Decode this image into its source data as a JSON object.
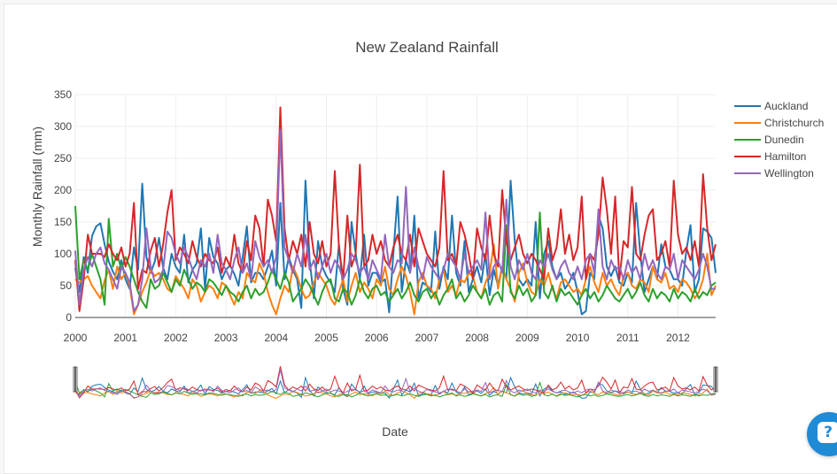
{
  "chart_data": {
    "type": "line",
    "title": "New Zealand Rainfall",
    "xlabel": "Date",
    "ylabel": "Monthly Rainfall (mm)",
    "ylim": [
      0,
      350
    ],
    "yticks": [
      0,
      50,
      100,
      150,
      200,
      250,
      300,
      350
    ],
    "xticks": [
      "2000",
      "2001",
      "2002",
      "2003",
      "2004",
      "2005",
      "2006",
      "2007",
      "2008",
      "2009",
      "2010",
      "2011",
      "2012"
    ],
    "x_range": [
      "2000-01",
      "2012-10"
    ],
    "grid": true,
    "legend_position": "top-right",
    "range_slider": true,
    "series": [
      {
        "name": "Auckland",
        "color": "#1f77b4",
        "values": [
          78,
          40,
          95,
          70,
          128,
          143,
          148,
          115,
          88,
          72,
          60,
          90,
          60,
          45,
          110,
          75,
          210,
          95,
          70,
          88,
          125,
          78,
          60,
          100,
          80,
          70,
          130,
          55,
          75,
          85,
          140,
          45,
          125,
          95,
          85,
          60,
          75,
          82,
          68,
          50,
          95,
          143,
          55,
          70,
          70,
          60,
          80,
          105,
          50,
          180,
          60,
          95,
          75,
          60,
          15,
          215,
          90,
          30,
          120,
          80,
          65,
          55,
          40,
          115,
          45,
          20,
          150,
          100,
          60,
          130,
          50,
          70,
          70,
          55,
          60,
          8,
          100,
          190,
          40,
          90,
          70,
          160,
          30,
          55,
          50,
          40,
          135,
          45,
          80,
          60,
          160,
          70,
          50,
          120,
          40,
          60,
          80,
          55,
          100,
          35,
          75,
          50,
          80,
          60,
          215,
          120,
          60,
          50,
          60,
          50,
          150,
          30,
          100,
          120,
          80,
          60,
          70,
          45,
          55,
          70,
          40,
          5,
          10,
          70,
          60,
          160,
          140,
          80,
          65,
          80,
          55,
          50,
          70,
          55,
          180,
          100,
          40,
          60,
          80,
          60,
          115,
          80,
          75,
          60,
          60,
          50,
          105,
          145,
          40,
          60,
          140,
          135,
          125,
          70
        ]
      },
      {
        "name": "Christchurch",
        "color": "#ff7f0e",
        "values": [
          60,
          55,
          60,
          65,
          50,
          40,
          30,
          58,
          75,
          45,
          80,
          60,
          70,
          50,
          5,
          20,
          40,
          55,
          75,
          65,
          70,
          60,
          45,
          40,
          65,
          55,
          45,
          30,
          60,
          50,
          25,
          40,
          50,
          45,
          30,
          55,
          50,
          35,
          20,
          40,
          30,
          70,
          60,
          55,
          85,
          70,
          40,
          20,
          5,
          30,
          50,
          40,
          80,
          65,
          45,
          30,
          35,
          55,
          70,
          60,
          50,
          30,
          20,
          40,
          60,
          25,
          50,
          70,
          40,
          55,
          45,
          30,
          60,
          50,
          80,
          45,
          35,
          60,
          80,
          65,
          40,
          5,
          55,
          70,
          50,
          45,
          30,
          60,
          75,
          40,
          50,
          35,
          60,
          55,
          70,
          65,
          40,
          30,
          55,
          70,
          115,
          45,
          80,
          60,
          45,
          25,
          70,
          85,
          55,
          40,
          35,
          60,
          50,
          70,
          45,
          30,
          55,
          60,
          50,
          40,
          45,
          35,
          60,
          80,
          55,
          40,
          70,
          50,
          60,
          45,
          35,
          65,
          70,
          50,
          45,
          60,
          55,
          40,
          80,
          60,
          55,
          70,
          45,
          50,
          40,
          60,
          55,
          45,
          30,
          40,
          60,
          100,
          35,
          50
        ]
      },
      {
        "name": "Dunedin",
        "color": "#2ca02c",
        "values": [
          175,
          60,
          90,
          75,
          100,
          80,
          60,
          20,
          155,
          80,
          100,
          75,
          95,
          80,
          60,
          40,
          25,
          15,
          60,
          45,
          50,
          70,
          55,
          40,
          60,
          50,
          75,
          60,
          45,
          55,
          50,
          40,
          60,
          55,
          45,
          35,
          50,
          40,
          35,
          25,
          40,
          50,
          30,
          45,
          35,
          40,
          55,
          75,
          60,
          45,
          70,
          55,
          25,
          35,
          45,
          60,
          50,
          35,
          20,
          40,
          55,
          60,
          30,
          25,
          45,
          40,
          20,
          35,
          60,
          40,
          30,
          45,
          50,
          35,
          40,
          25,
          35,
          45,
          30,
          40,
          55,
          35,
          25,
          40,
          45,
          30,
          40,
          20,
          35,
          45,
          60,
          30,
          40,
          25,
          35,
          50,
          40,
          30,
          45,
          20,
          35,
          40,
          25,
          145,
          40,
          30,
          50,
          35,
          45,
          25,
          35,
          165,
          40,
          30,
          50,
          25,
          45,
          35,
          40,
          30,
          20,
          35,
          45,
          30,
          40,
          25,
          35,
          50,
          40,
          30,
          25,
          35,
          45,
          30,
          40,
          55,
          35,
          25,
          45,
          30,
          40,
          35,
          25,
          45,
          30,
          40,
          35,
          25,
          45,
          30,
          40,
          35,
          50,
          55
        ]
      },
      {
        "name": "Hamilton",
        "color": "#d62728",
        "values": [
          90,
          10,
          60,
          130,
          100,
          100,
          100,
          95,
          115,
          100,
          90,
          110,
          80,
          100,
          180,
          45,
          75,
          70,
          105,
          125,
          80,
          115,
          165,
          200,
          90,
          110,
          100,
          85,
          120,
          95,
          80,
          100,
          90,
          85,
          110,
          70,
          95,
          80,
          130,
          85,
          70,
          120,
          90,
          160,
          140,
          80,
          185,
          160,
          120,
          330,
          140,
          90,
          120,
          100,
          130,
          80,
          150,
          100,
          85,
          120,
          80,
          100,
          230,
          110,
          60,
          160,
          80,
          100,
          240,
          80,
          90,
          130,
          100,
          120,
          90,
          80,
          110,
          130,
          100,
          90,
          130,
          80,
          140,
          120,
          100,
          90,
          80,
          110,
          230,
          90,
          100,
          80,
          150,
          130,
          100,
          60,
          140,
          110,
          90,
          160,
          100,
          80,
          200,
          120,
          90,
          110,
          130,
          100,
          85,
          100,
          90,
          75,
          60,
          140,
          90,
          110,
          170,
          100,
          130,
          90,
          110,
          190,
          60,
          100,
          90,
          130,
          220,
          170,
          100,
          190,
          60,
          120,
          110,
          205,
          100,
          90,
          130,
          160,
          170,
          90,
          100,
          120,
          80,
          215,
          130,
          100,
          110,
          90,
          120,
          80,
          225,
          140,
          90,
          115
        ]
      },
      {
        "name": "Wellington",
        "color": "#9467bd",
        "values": [
          105,
          20,
          75,
          95,
          80,
          100,
          110,
          85,
          75,
          60,
          45,
          80,
          70,
          55,
          10,
          20,
          60,
          140,
          80,
          55,
          60,
          75,
          135,
          125,
          100,
          85,
          110,
          95,
          75,
          60,
          90,
          80,
          100,
          70,
          130,
          85,
          75,
          60,
          90,
          110,
          70,
          85,
          60,
          120,
          95,
          80,
          90,
          70,
          95,
          295,
          110,
          90,
          70,
          100,
          80,
          130,
          75,
          90,
          60,
          80,
          100,
          70,
          90,
          80,
          60,
          75,
          100,
          90,
          70,
          80,
          60,
          90,
          75,
          60,
          130,
          80,
          70,
          90,
          85,
          205,
          70,
          110,
          80,
          60,
          95,
          80,
          70,
          60,
          75,
          100,
          90,
          80,
          60,
          100,
          70,
          80,
          90,
          75,
          165,
          60,
          80,
          90,
          70,
          185,
          80,
          60,
          90,
          75,
          100,
          70,
          60,
          90,
          80,
          100,
          75,
          60,
          80,
          90,
          70,
          60,
          80,
          60,
          90,
          100,
          70,
          170,
          80,
          60,
          90,
          75,
          80,
          60,
          90,
          70,
          80,
          60,
          100,
          75,
          90,
          70,
          60,
          80,
          75,
          100,
          60,
          90,
          80,
          70,
          60,
          75,
          100,
          80,
          45,
          45
        ]
      }
    ]
  },
  "help": {
    "icon": "help-chat-icon",
    "glyph": "?"
  }
}
